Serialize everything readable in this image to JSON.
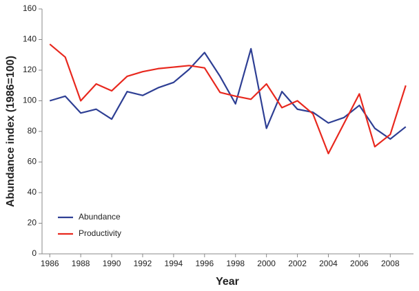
{
  "chart_data": {
    "type": "line",
    "x_label": "Year",
    "y_label": "Abundance index (1986=100)",
    "x": [
      1986,
      1987,
      1988,
      1989,
      1990,
      1991,
      1992,
      1993,
      1994,
      1995,
      1996,
      1997,
      1998,
      1999,
      2000,
      2001,
      2002,
      2003,
      2004,
      2005,
      2006,
      2007,
      2008,
      2009
    ],
    "series": [
      {
        "name": "Abundance",
        "color": "#2e3f94",
        "values": [
          100,
          103,
          92,
          94.5,
          88,
          106,
          103.5,
          108.5,
          112,
          120.5,
          131.5,
          116,
          98,
          134,
          82,
          106,
          94.5,
          92.5,
          85.5,
          89,
          97,
          82,
          75,
          83
        ]
      },
      {
        "name": "Productivity",
        "color": "#e8281e",
        "values": [
          137,
          128.5,
          100,
          111,
          106.5,
          116,
          119,
          121,
          122,
          123,
          121.5,
          105.5,
          103,
          101,
          111,
          95.5,
          100,
          91.5,
          65.5,
          85,
          104.5,
          70,
          78,
          110
        ]
      }
    ],
    "xlim": [
      1985.5,
      2009.5
    ],
    "xticks": [
      1986,
      1988,
      1990,
      1992,
      1994,
      1996,
      1998,
      2000,
      2002,
      2004,
      2006,
      2008
    ],
    "ylim": [
      0,
      160
    ],
    "yticks": [
      0,
      20,
      40,
      60,
      80,
      100,
      120,
      140,
      160
    ],
    "legend": "lower-left"
  }
}
